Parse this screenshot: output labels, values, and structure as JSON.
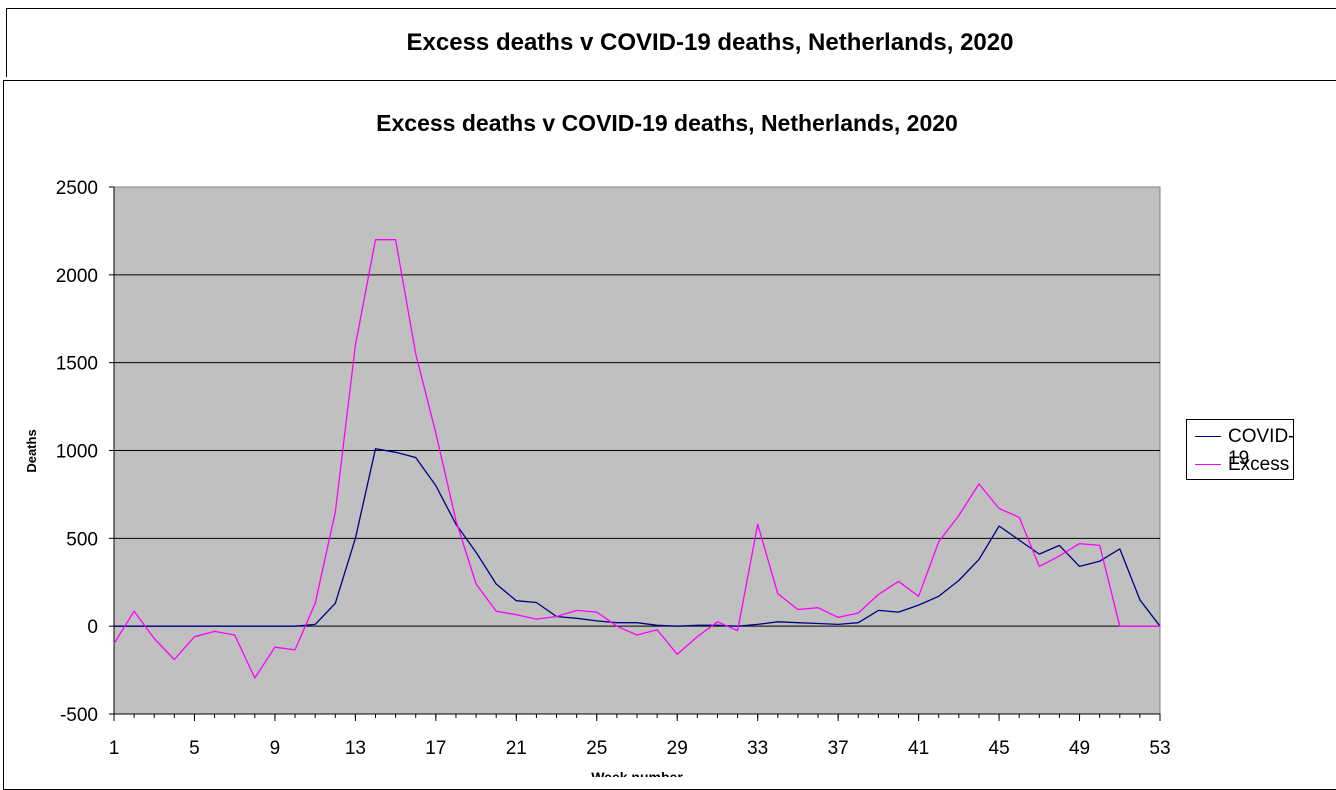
{
  "sheet": {
    "title": "Excess deaths v COVID-19 deaths, Netherlands, 2020"
  },
  "chart_data": {
    "type": "line",
    "title": "Excess deaths v COVID-19 deaths, Netherlands, 2020",
    "xlabel": "Week number",
    "ylabel": "Deaths",
    "xlim": [
      1,
      53
    ],
    "ylim": [
      -500,
      2500
    ],
    "y_ticks": [
      "-500",
      "0",
      "500",
      "1000",
      "1500",
      "2000",
      "2500"
    ],
    "x_ticks": [
      "1",
      "5",
      "9",
      "13",
      "17",
      "21",
      "25",
      "29",
      "33",
      "37",
      "41",
      "45",
      "49",
      "53"
    ],
    "grid": "horizontal",
    "plot_background": "#c0c0c0",
    "legend_position": "right",
    "x": [
      1,
      2,
      3,
      4,
      5,
      6,
      7,
      8,
      9,
      10,
      11,
      12,
      13,
      14,
      15,
      16,
      17,
      18,
      19,
      20,
      21,
      22,
      23,
      24,
      25,
      26,
      27,
      28,
      29,
      30,
      31,
      32,
      33,
      34,
      35,
      36,
      37,
      38,
      39,
      40,
      41,
      42,
      43,
      44,
      45,
      46,
      47,
      48,
      49,
      50,
      51,
      52,
      53
    ],
    "series": [
      {
        "name": "COVID-19",
        "color": "#000080",
        "values": [
          0,
          0,
          0,
          0,
          0,
          0,
          0,
          0,
          0,
          0,
          10,
          130,
          500,
          1010,
          990,
          960,
          800,
          580,
          420,
          240,
          145,
          135,
          55,
          45,
          30,
          20,
          20,
          5,
          0,
          5,
          5,
          0,
          10,
          25,
          20,
          15,
          10,
          20,
          90,
          80,
          120,
          170,
          260,
          380,
          570,
          490,
          410,
          460,
          340,
          370,
          440,
          150,
          0
        ]
      },
      {
        "name": "Excess",
        "color": "#ff00ff",
        "values": [
          -100,
          85,
          -70,
          -190,
          -60,
          -30,
          -50,
          -295,
          -120,
          -135,
          130,
          650,
          1600,
          2200,
          2200,
          1550,
          1100,
          600,
          240,
          85,
          65,
          40,
          55,
          90,
          80,
          0,
          -50,
          -20,
          -160,
          -60,
          25,
          -25,
          580,
          185,
          95,
          105,
          50,
          75,
          180,
          255,
          170,
          480,
          630,
          810,
          670,
          620,
          340,
          400,
          470,
          460,
          0,
          0,
          0
        ]
      }
    ]
  }
}
